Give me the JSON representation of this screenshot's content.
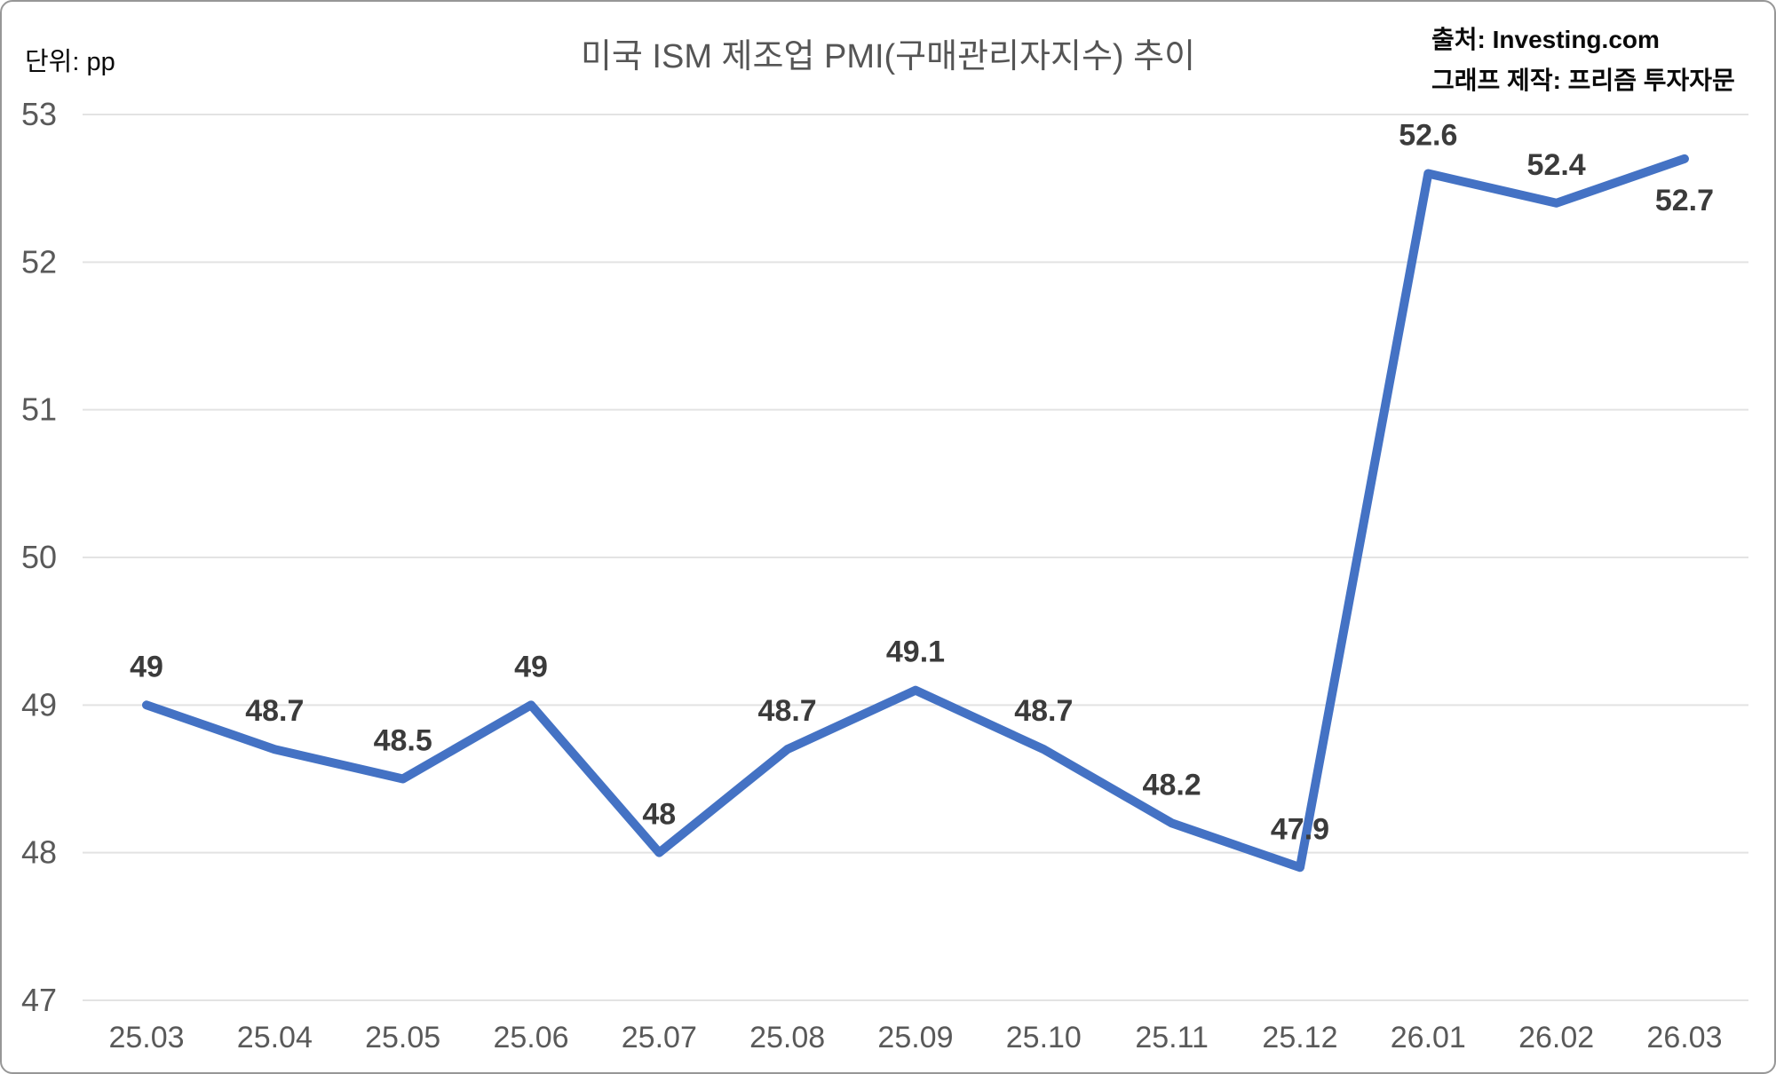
{
  "header": {
    "unit_label": "단위: pp",
    "title": "미국 ISM 제조업 PMI(구매관리자지수) 추이",
    "source_line1": "출처: Investing.com",
    "source_line2": "그래프 제작: 프리즘 투자자문"
  },
  "chart_data": {
    "type": "line",
    "title": "미국 ISM 제조업 PMI(구매관리자지수) 추이",
    "unit": "pp",
    "categories": [
      "25.03",
      "25.04",
      "25.05",
      "25.06",
      "25.07",
      "25.08",
      "25.09",
      "25.10",
      "25.11",
      "25.12",
      "26.01",
      "26.02",
      "26.03"
    ],
    "values": [
      49,
      48.7,
      48.5,
      49,
      48,
      48.7,
      49.1,
      48.7,
      48.2,
      47.9,
      52.6,
      52.4,
      52.7
    ],
    "data_labels": [
      "49",
      "48.7",
      "48.5",
      "49",
      "48",
      "48.7",
      "49.1",
      "48.7",
      "48.2",
      "47.9",
      "52.6",
      "52.4",
      "52.7"
    ],
    "label_positions": [
      "above",
      "above",
      "above",
      "above",
      "above",
      "above",
      "above",
      "above",
      "above",
      "above",
      "above",
      "above",
      "below"
    ],
    "ylim": [
      47,
      53
    ],
    "yticks": [
      53,
      52,
      51,
      50,
      49,
      48,
      47
    ],
    "grid": true,
    "legend": "none",
    "xlabel": "",
    "ylabel": "",
    "line_color": "#4472C4",
    "grid_color": "#e3e3e3",
    "axis_label_color": "#595959",
    "data_label_color": "#3b3b3b"
  }
}
